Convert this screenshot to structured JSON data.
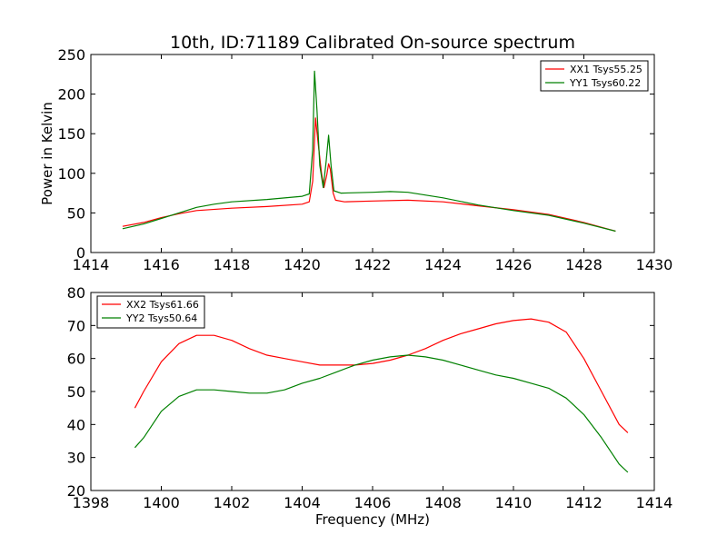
{
  "title": "10th, ID:71189 Calibrated On-source spectrum",
  "colors": {
    "xx": "#ff0000",
    "yy": "#008000"
  },
  "chart_data": [
    {
      "type": "line",
      "ylabel": "Power in Kelvin",
      "xlabel": "",
      "xlim": [
        1414,
        1430
      ],
      "ylim": [
        0,
        250
      ],
      "xticks": [
        1414,
        1416,
        1418,
        1420,
        1422,
        1424,
        1426,
        1428,
        1430
      ],
      "yticks": [
        0,
        50,
        100,
        150,
        200,
        250
      ],
      "legend_position": "top-right",
      "series": [
        {
          "name": "XX1 Tsys55.25",
          "color": "#ff0000",
          "points": [
            [
              1414.9,
              33
            ],
            [
              1415.5,
              38
            ],
            [
              1416.0,
              44
            ],
            [
              1416.5,
              49
            ],
            [
              1417.0,
              53
            ],
            [
              1418.0,
              56
            ],
            [
              1419.0,
              58
            ],
            [
              1420.0,
              61
            ],
            [
              1420.2,
              64
            ],
            [
              1420.3,
              90
            ],
            [
              1420.38,
              170
            ],
            [
              1420.45,
              140
            ],
            [
              1420.55,
              100
            ],
            [
              1420.62,
              82
            ],
            [
              1420.7,
              98
            ],
            [
              1420.75,
              112
            ],
            [
              1420.8,
              105
            ],
            [
              1420.88,
              75
            ],
            [
              1420.95,
              66
            ],
            [
              1421.2,
              64
            ],
            [
              1422.0,
              65
            ],
            [
              1423.0,
              66
            ],
            [
              1424.0,
              64
            ],
            [
              1425.0,
              59
            ],
            [
              1426.0,
              54
            ],
            [
              1427.0,
              48
            ],
            [
              1428.0,
              38
            ],
            [
              1428.9,
              27
            ]
          ]
        },
        {
          "name": "YY1 Tsys60.22",
          "color": "#008000",
          "points": [
            [
              1414.9,
              30
            ],
            [
              1415.5,
              36
            ],
            [
              1416.0,
              43
            ],
            [
              1416.5,
              50
            ],
            [
              1417.0,
              57
            ],
            [
              1417.5,
              61
            ],
            [
              1418.0,
              64
            ],
            [
              1419.0,
              67
            ],
            [
              1420.0,
              71
            ],
            [
              1420.2,
              74
            ],
            [
              1420.3,
              130
            ],
            [
              1420.35,
              229
            ],
            [
              1420.42,
              180
            ],
            [
              1420.5,
              110
            ],
            [
              1420.6,
              82
            ],
            [
              1420.68,
              115
            ],
            [
              1420.75,
              148
            ],
            [
              1420.82,
              110
            ],
            [
              1420.9,
              78
            ],
            [
              1421.1,
              75
            ],
            [
              1422.0,
              76
            ],
            [
              1422.5,
              77
            ],
            [
              1423.0,
              76
            ],
            [
              1424.0,
              69
            ],
            [
              1425.0,
              60
            ],
            [
              1426.0,
              53
            ],
            [
              1427.0,
              47
            ],
            [
              1428.0,
              37
            ],
            [
              1428.9,
              27
            ]
          ]
        }
      ]
    },
    {
      "type": "line",
      "ylabel": "",
      "xlabel": "Frequency (MHz)",
      "xlim": [
        1398,
        1414
      ],
      "ylim": [
        20,
        80
      ],
      "xticks": [
        1398,
        1400,
        1402,
        1404,
        1406,
        1408,
        1410,
        1412,
        1414
      ],
      "yticks": [
        20,
        30,
        40,
        50,
        60,
        70,
        80
      ],
      "legend_position": "top-left",
      "series": [
        {
          "name": "XX2 Tsys61.66",
          "color": "#ff0000",
          "points": [
            [
              1399.25,
              45
            ],
            [
              1399.5,
              50
            ],
            [
              1400.0,
              59
            ],
            [
              1400.5,
              64.5
            ],
            [
              1401.0,
              67
            ],
            [
              1401.5,
              67
            ],
            [
              1402.0,
              65.5
            ],
            [
              1402.5,
              63
            ],
            [
              1403.0,
              61
            ],
            [
              1403.5,
              60
            ],
            [
              1404.0,
              59
            ],
            [
              1404.5,
              58
            ],
            [
              1405.0,
              58
            ],
            [
              1405.5,
              58
            ],
            [
              1406.0,
              58.5
            ],
            [
              1406.5,
              59.5
            ],
            [
              1407.0,
              61
            ],
            [
              1407.5,
              63
            ],
            [
              1408.0,
              65.5
            ],
            [
              1408.5,
              67.5
            ],
            [
              1409.0,
              69
            ],
            [
              1409.5,
              70.5
            ],
            [
              1410.0,
              71.5
            ],
            [
              1410.5,
              72
            ],
            [
              1411.0,
              71
            ],
            [
              1411.5,
              68
            ],
            [
              1412.0,
              60
            ],
            [
              1412.5,
              50
            ],
            [
              1413.0,
              40
            ],
            [
              1413.25,
              37.5
            ]
          ]
        },
        {
          "name": "YY2 Tsys50.64",
          "color": "#008000",
          "points": [
            [
              1399.25,
              33
            ],
            [
              1399.5,
              36
            ],
            [
              1400.0,
              44
            ],
            [
              1400.5,
              48.5
            ],
            [
              1401.0,
              50.5
            ],
            [
              1401.5,
              50.5
            ],
            [
              1402.0,
              50
            ],
            [
              1402.5,
              49.5
            ],
            [
              1403.0,
              49.5
            ],
            [
              1403.5,
              50.5
            ],
            [
              1404.0,
              52.5
            ],
            [
              1404.5,
              54
            ],
            [
              1405.0,
              56
            ],
            [
              1405.5,
              58
            ],
            [
              1406.0,
              59.5
            ],
            [
              1406.5,
              60.5
            ],
            [
              1407.0,
              61
            ],
            [
              1407.5,
              60.5
            ],
            [
              1408.0,
              59.5
            ],
            [
              1408.5,
              58
            ],
            [
              1409.0,
              56.5
            ],
            [
              1409.5,
              55
            ],
            [
              1410.0,
              54
            ],
            [
              1410.5,
              52.5
            ],
            [
              1411.0,
              51
            ],
            [
              1411.5,
              48
            ],
            [
              1412.0,
              43
            ],
            [
              1412.5,
              36
            ],
            [
              1413.0,
              28
            ],
            [
              1413.25,
              25.5
            ]
          ]
        }
      ]
    }
  ]
}
